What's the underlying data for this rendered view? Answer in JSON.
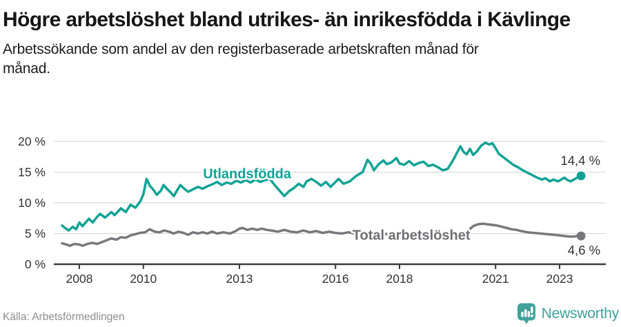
{
  "header": {
    "title": "Högre arbetslöshet bland utrikes- än inrikesfödda i Kävlinge",
    "subtitle": "Arbetssökande som andel av den registerbaserade arbetskraften månad för månad."
  },
  "footer": {
    "source": "Källa: Arbetsförmedlingen",
    "brand": "Newsworthy"
  },
  "colors": {
    "accent_teal": "#0fa294",
    "line_gray": "#77777d",
    "label_gray": "#6e6e74",
    "brand_teal": "#43a19c",
    "grid": "#dbdbdb",
    "axis": "#3a3a3a",
    "tick_text": "#333333",
    "value_label_text": "#333333"
  },
  "chart_data": {
    "type": "line",
    "title": "Högre arbetslöshet bland utrikes- än inrikesfödda i Kävlinge",
    "xlabel": "",
    "ylabel": "",
    "unit": "%",
    "grid": true,
    "xlim": [
      2007.45,
      2023.7
    ],
    "ylim": [
      0,
      20
    ],
    "y_ticks": [
      {
        "value": 0,
        "label": "0 %"
      },
      {
        "value": 5,
        "label": "5 %"
      },
      {
        "value": 10,
        "label": "10 %"
      },
      {
        "value": 15,
        "label": "15 %"
      },
      {
        "value": 20,
        "label": "20 %"
      }
    ],
    "x_ticks": [
      {
        "value": 2008,
        "label": "2008"
      },
      {
        "value": 2010,
        "label": "2010"
      },
      {
        "value": 2013,
        "label": "2013"
      },
      {
        "value": 2016,
        "label": "2016"
      },
      {
        "value": 2018,
        "label": "2018"
      },
      {
        "value": 2021,
        "label": "2021"
      },
      {
        "value": 2023,
        "label": "2023"
      }
    ],
    "series": [
      {
        "name": "Total arbetslöshet",
        "color": "#77777d",
        "label_color": "#6e6e74",
        "end_label": "4,6 %",
        "end_label_side": "below",
        "label_anchor": [
          2018.37,
          4.75
        ],
        "points": [
          [
            2007.46,
            3.4
          ],
          [
            2007.6,
            3.2
          ],
          [
            2007.7,
            3.0
          ],
          [
            2007.85,
            3.3
          ],
          [
            2008.0,
            3.2
          ],
          [
            2008.1,
            3.0
          ],
          [
            2008.25,
            3.3
          ],
          [
            2008.4,
            3.5
          ],
          [
            2008.55,
            3.3
          ],
          [
            2008.7,
            3.6
          ],
          [
            2008.85,
            3.9
          ],
          [
            2009.0,
            4.2
          ],
          [
            2009.15,
            4.0
          ],
          [
            2009.3,
            4.4
          ],
          [
            2009.45,
            4.3
          ],
          [
            2009.6,
            4.7
          ],
          [
            2009.75,
            4.9
          ],
          [
            2009.9,
            5.1
          ],
          [
            2010.05,
            5.2
          ],
          [
            2010.2,
            5.7
          ],
          [
            2010.35,
            5.3
          ],
          [
            2010.5,
            5.2
          ],
          [
            2010.65,
            5.5
          ],
          [
            2010.8,
            5.3
          ],
          [
            2010.95,
            5.0
          ],
          [
            2011.1,
            5.3
          ],
          [
            2011.25,
            5.1
          ],
          [
            2011.4,
            4.8
          ],
          [
            2011.55,
            5.2
          ],
          [
            2011.7,
            5.0
          ],
          [
            2011.85,
            5.2
          ],
          [
            2012.0,
            5.0
          ],
          [
            2012.15,
            5.3
          ],
          [
            2012.3,
            5.0
          ],
          [
            2012.5,
            5.2
          ],
          [
            2012.7,
            5.0
          ],
          [
            2012.85,
            5.3
          ],
          [
            2013.0,
            5.8
          ],
          [
            2013.1,
            5.9
          ],
          [
            2013.25,
            5.6
          ],
          [
            2013.4,
            5.8
          ],
          [
            2013.55,
            5.6
          ],
          [
            2013.7,
            5.8
          ],
          [
            2013.85,
            5.6
          ],
          [
            2014.0,
            5.5
          ],
          [
            2014.2,
            5.3
          ],
          [
            2014.4,
            5.6
          ],
          [
            2014.6,
            5.3
          ],
          [
            2014.8,
            5.2
          ],
          [
            2015.0,
            5.5
          ],
          [
            2015.2,
            5.2
          ],
          [
            2015.4,
            5.4
          ],
          [
            2015.6,
            5.1
          ],
          [
            2015.8,
            5.3
          ],
          [
            2016.0,
            5.1
          ],
          [
            2016.2,
            5.0
          ],
          [
            2016.4,
            5.2
          ],
          [
            2016.6,
            5.0
          ],
          [
            2016.8,
            5.2
          ],
          [
            2017.0,
            5.0
          ],
          [
            2017.2,
            4.9
          ],
          [
            2017.4,
            5.1
          ],
          [
            2017.6,
            4.9
          ],
          [
            2017.8,
            5.0
          ],
          [
            2018.0,
            4.8
          ],
          [
            2018.2,
            4.9
          ],
          [
            2018.4,
            4.7
          ],
          [
            2018.6,
            4.8
          ],
          [
            2018.8,
            4.7
          ],
          [
            2019.0,
            4.8
          ],
          [
            2019.2,
            4.6
          ],
          [
            2019.4,
            4.7
          ],
          [
            2019.6,
            4.8
          ],
          [
            2019.8,
            4.9
          ],
          [
            2020.0,
            5.0
          ],
          [
            2020.15,
            5.5
          ],
          [
            2020.3,
            6.2
          ],
          [
            2020.45,
            6.5
          ],
          [
            2020.6,
            6.6
          ],
          [
            2020.75,
            6.5
          ],
          [
            2020.9,
            6.4
          ],
          [
            2021.05,
            6.3
          ],
          [
            2021.2,
            6.1
          ],
          [
            2021.35,
            5.9
          ],
          [
            2021.5,
            5.7
          ],
          [
            2021.65,
            5.6
          ],
          [
            2021.8,
            5.4
          ],
          [
            2022.0,
            5.2
          ],
          [
            2022.2,
            5.1
          ],
          [
            2022.4,
            5.0
          ],
          [
            2022.6,
            4.9
          ],
          [
            2022.8,
            4.8
          ],
          [
            2023.0,
            4.7
          ],
          [
            2023.15,
            4.6
          ],
          [
            2023.3,
            4.5
          ],
          [
            2023.45,
            4.5
          ],
          [
            2023.55,
            4.6
          ],
          [
            2023.67,
            4.6
          ]
        ]
      },
      {
        "name": "Utlandsfödda",
        "color": "#0fa294",
        "label_color": "#0fa294",
        "end_label": "14,4 %",
        "end_label_side": "above",
        "label_anchor": [
          2013.24,
          14.75
        ],
        "points": [
          [
            2007.46,
            6.3
          ],
          [
            2007.58,
            5.8
          ],
          [
            2007.67,
            5.5
          ],
          [
            2007.79,
            6.1
          ],
          [
            2007.9,
            5.7
          ],
          [
            2008.0,
            6.8
          ],
          [
            2008.1,
            6.2
          ],
          [
            2008.3,
            7.4
          ],
          [
            2008.42,
            6.8
          ],
          [
            2008.55,
            7.7
          ],
          [
            2008.65,
            8.2
          ],
          [
            2008.8,
            7.6
          ],
          [
            2009.0,
            8.5
          ],
          [
            2009.1,
            8.0
          ],
          [
            2009.3,
            9.1
          ],
          [
            2009.45,
            8.5
          ],
          [
            2009.6,
            9.7
          ],
          [
            2009.75,
            9.2
          ],
          [
            2009.9,
            10.2
          ],
          [
            2010.0,
            11.4
          ],
          [
            2010.1,
            13.9
          ],
          [
            2010.2,
            12.8
          ],
          [
            2010.3,
            12.2
          ],
          [
            2010.42,
            11.3
          ],
          [
            2010.55,
            12.0
          ],
          [
            2010.63,
            12.9
          ],
          [
            2010.75,
            12.2
          ],
          [
            2010.85,
            11.7
          ],
          [
            2010.95,
            11.1
          ],
          [
            2011.05,
            12.0
          ],
          [
            2011.15,
            12.9
          ],
          [
            2011.3,
            12.2
          ],
          [
            2011.4,
            11.8
          ],
          [
            2011.55,
            12.2
          ],
          [
            2011.7,
            12.6
          ],
          [
            2011.85,
            12.3
          ],
          [
            2012.0,
            12.7
          ],
          [
            2012.15,
            13.0
          ],
          [
            2012.3,
            13.4
          ],
          [
            2012.45,
            12.9
          ],
          [
            2012.6,
            13.3
          ],
          [
            2012.75,
            13.1
          ],
          [
            2012.9,
            13.6
          ],
          [
            2013.05,
            13.3
          ],
          [
            2013.2,
            13.7
          ],
          [
            2013.35,
            13.3
          ],
          [
            2013.5,
            13.8
          ],
          [
            2013.65,
            13.4
          ],
          [
            2013.8,
            13.7
          ],
          [
            2013.95,
            13.9
          ],
          [
            2014.1,
            12.9
          ],
          [
            2014.25,
            12.0
          ],
          [
            2014.4,
            11.1
          ],
          [
            2014.55,
            11.9
          ],
          [
            2014.7,
            12.4
          ],
          [
            2014.85,
            13.1
          ],
          [
            2015.0,
            12.6
          ],
          [
            2015.1,
            13.5
          ],
          [
            2015.25,
            13.9
          ],
          [
            2015.4,
            13.4
          ],
          [
            2015.55,
            12.8
          ],
          [
            2015.7,
            13.4
          ],
          [
            2015.85,
            12.6
          ],
          [
            2016.0,
            13.4
          ],
          [
            2016.1,
            13.9
          ],
          [
            2016.25,
            13.1
          ],
          [
            2016.45,
            13.5
          ],
          [
            2016.65,
            14.4
          ],
          [
            2016.85,
            15.0
          ],
          [
            2017.0,
            17.0
          ],
          [
            2017.1,
            16.4
          ],
          [
            2017.2,
            15.3
          ],
          [
            2017.35,
            16.3
          ],
          [
            2017.5,
            16.9
          ],
          [
            2017.6,
            16.3
          ],
          [
            2017.75,
            16.6
          ],
          [
            2017.9,
            17.3
          ],
          [
            2018.0,
            16.4
          ],
          [
            2018.15,
            16.2
          ],
          [
            2018.3,
            16.8
          ],
          [
            2018.45,
            16.1
          ],
          [
            2018.6,
            16.5
          ],
          [
            2018.75,
            16.7
          ],
          [
            2018.9,
            16.0
          ],
          [
            2019.05,
            16.2
          ],
          [
            2019.2,
            15.8
          ],
          [
            2019.35,
            15.3
          ],
          [
            2019.5,
            15.5
          ],
          [
            2019.6,
            16.3
          ],
          [
            2019.7,
            17.2
          ],
          [
            2019.8,
            18.2
          ],
          [
            2019.9,
            19.2
          ],
          [
            2020.0,
            18.3
          ],
          [
            2020.1,
            17.9
          ],
          [
            2020.2,
            18.8
          ],
          [
            2020.3,
            17.8
          ],
          [
            2020.42,
            18.4
          ],
          [
            2020.55,
            19.3
          ],
          [
            2020.68,
            19.8
          ],
          [
            2020.8,
            19.5
          ],
          [
            2020.9,
            19.7
          ],
          [
            2021.0,
            18.9
          ],
          [
            2021.1,
            18.0
          ],
          [
            2021.25,
            17.4
          ],
          [
            2021.4,
            16.8
          ],
          [
            2021.55,
            16.2
          ],
          [
            2021.7,
            15.8
          ],
          [
            2021.85,
            15.3
          ],
          [
            2022.0,
            14.9
          ],
          [
            2022.15,
            14.5
          ],
          [
            2022.3,
            14.1
          ],
          [
            2022.45,
            13.8
          ],
          [
            2022.55,
            14.0
          ],
          [
            2022.7,
            13.5
          ],
          [
            2022.8,
            13.8
          ],
          [
            2022.95,
            13.5
          ],
          [
            2023.05,
            13.8
          ],
          [
            2023.15,
            14.1
          ],
          [
            2023.25,
            13.7
          ],
          [
            2023.35,
            13.5
          ],
          [
            2023.45,
            13.8
          ],
          [
            2023.55,
            14.1
          ],
          [
            2023.67,
            14.4
          ]
        ]
      }
    ]
  }
}
